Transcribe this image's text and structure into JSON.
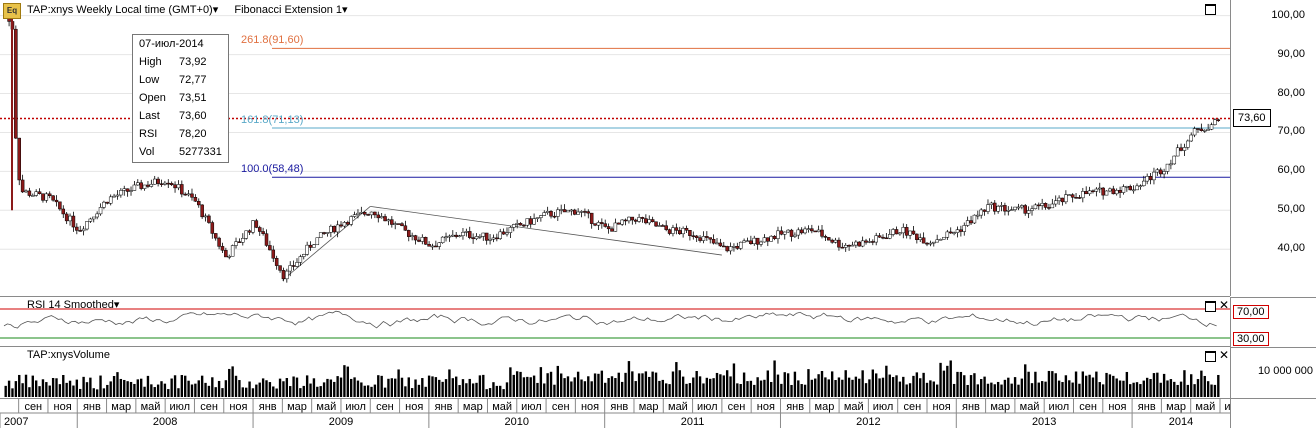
{
  "header": {
    "logo_text": "Eq",
    "symbol_label": "TAP:xnys Weekly Local time (GMT+0)",
    "study_label": "Fibonacci Extension 1"
  },
  "info_box": {
    "date": "07-июл-2014",
    "rows": [
      {
        "label": "High",
        "value": "73,92"
      },
      {
        "label": "Low",
        "value": "72,77"
      },
      {
        "label": "Open",
        "value": "73,51"
      },
      {
        "label": "Last",
        "value": "73,60"
      },
      {
        "label": "RSI",
        "value": "78,20"
      },
      {
        "label": "Vol",
        "value": "5277331"
      }
    ]
  },
  "fibonacci": {
    "levels": [
      {
        "label": "261.8(91,60)",
        "value": 91.6,
        "color": "#e07040"
      },
      {
        "label": "161.8(71,13)",
        "value": 71.13,
        "color": "#5aa9c8"
      },
      {
        "label": "100.0(58,48)",
        "value": 58.48,
        "color": "#1a1aa0"
      }
    ]
  },
  "price_axis": {
    "ticks": [
      "100,00",
      "90,00",
      "80,00",
      "70,00",
      "60,00",
      "50,00",
      "40,00"
    ],
    "tick_values": [
      100,
      90,
      80,
      70,
      60,
      50,
      40
    ],
    "last_price_label": "73,60",
    "last_price": 73.6,
    "ylim": [
      28.5,
      103
    ]
  },
  "rsi": {
    "title": "RSI 14 Smoothed",
    "upper_label": "70,00",
    "lower_label": "30,00",
    "upper": 70,
    "lower": 30
  },
  "volume": {
    "title": "TAP:xnysVolume",
    "tick_label": "10 000 000"
  },
  "time_axis": {
    "months": [
      "сен",
      "ноя",
      "янв",
      "мар",
      "май",
      "июл",
      "сен",
      "ноя",
      "янв",
      "мар",
      "май",
      "июл",
      "сен",
      "ноя",
      "янв",
      "мар",
      "май",
      "июл",
      "сен",
      "ноя",
      "янв",
      "мар",
      "май",
      "июл",
      "сен",
      "ноя",
      "янв",
      "мар",
      "май",
      "июл",
      "сен",
      "ноя",
      "янв",
      "мар",
      "май",
      "июл",
      "сен",
      "ноя",
      "янв",
      "мар",
      "май",
      "июл",
      "сен",
      "ноя",
      "янв",
      "мар",
      "май"
    ],
    "years": [
      "2007",
      "2008",
      "2009",
      "2010",
      "2011",
      "2012",
      "2013",
      "2014"
    ]
  },
  "chart_data": {
    "type": "candlestick",
    "title": "TAP:xnys Weekly",
    "x_start": "2007-08",
    "x_end": "2014-07",
    "anchor_points": [
      {
        "date": "2007-08",
        "price": 101
      },
      {
        "date": "2007-09",
        "price": 55
      },
      {
        "date": "2007-11",
        "price": 53
      },
      {
        "date": "2008-01",
        "price": 45
      },
      {
        "date": "2008-03",
        "price": 53
      },
      {
        "date": "2008-05",
        "price": 56
      },
      {
        "date": "2008-07",
        "price": 58
      },
      {
        "date": "2008-09",
        "price": 52
      },
      {
        "date": "2008-11",
        "price": 38
      },
      {
        "date": "2009-01",
        "price": 47
      },
      {
        "date": "2009-03",
        "price": 33
      },
      {
        "date": "2009-05",
        "price": 42
      },
      {
        "date": "2009-07",
        "price": 47
      },
      {
        "date": "2009-09",
        "price": 50
      },
      {
        "date": "2009-11",
        "price": 45
      },
      {
        "date": "2010-01",
        "price": 41
      },
      {
        "date": "2010-03",
        "price": 44
      },
      {
        "date": "2010-05",
        "price": 43
      },
      {
        "date": "2010-07",
        "price": 46
      },
      {
        "date": "2010-09",
        "price": 49
      },
      {
        "date": "2010-11",
        "price": 50
      },
      {
        "date": "2011-01",
        "price": 45
      },
      {
        "date": "2011-03",
        "price": 48
      },
      {
        "date": "2011-05",
        "price": 45
      },
      {
        "date": "2011-07",
        "price": 44
      },
      {
        "date": "2011-09",
        "price": 40
      },
      {
        "date": "2011-11",
        "price": 42
      },
      {
        "date": "2012-01",
        "price": 44
      },
      {
        "date": "2012-03",
        "price": 45
      },
      {
        "date": "2012-05",
        "price": 41
      },
      {
        "date": "2012-07",
        "price": 42
      },
      {
        "date": "2012-09",
        "price": 45
      },
      {
        "date": "2012-11",
        "price": 42
      },
      {
        "date": "2013-01",
        "price": 45
      },
      {
        "date": "2013-03",
        "price": 51
      },
      {
        "date": "2013-05",
        "price": 50
      },
      {
        "date": "2013-07",
        "price": 51
      },
      {
        "date": "2013-09",
        "price": 54
      },
      {
        "date": "2013-11",
        "price": 55
      },
      {
        "date": "2014-01",
        "price": 56
      },
      {
        "date": "2014-03",
        "price": 61
      },
      {
        "date": "2014-05",
        "price": 70
      },
      {
        "date": "2014-07",
        "price": 73.6
      }
    ],
    "trend_lines": [
      {
        "from": {
          "date": "2009-03",
          "price": 32
        },
        "to": {
          "date": "2009-09",
          "price": 51
        }
      },
      {
        "from": {
          "date": "2009-09",
          "price": 51
        },
        "to": {
          "date": "2011-09",
          "price": 38.5
        }
      }
    ],
    "colors": {
      "up": "#ffffff",
      "down": "#8b1a1a",
      "outline": "#000000",
      "last_line": "#c00000"
    }
  }
}
